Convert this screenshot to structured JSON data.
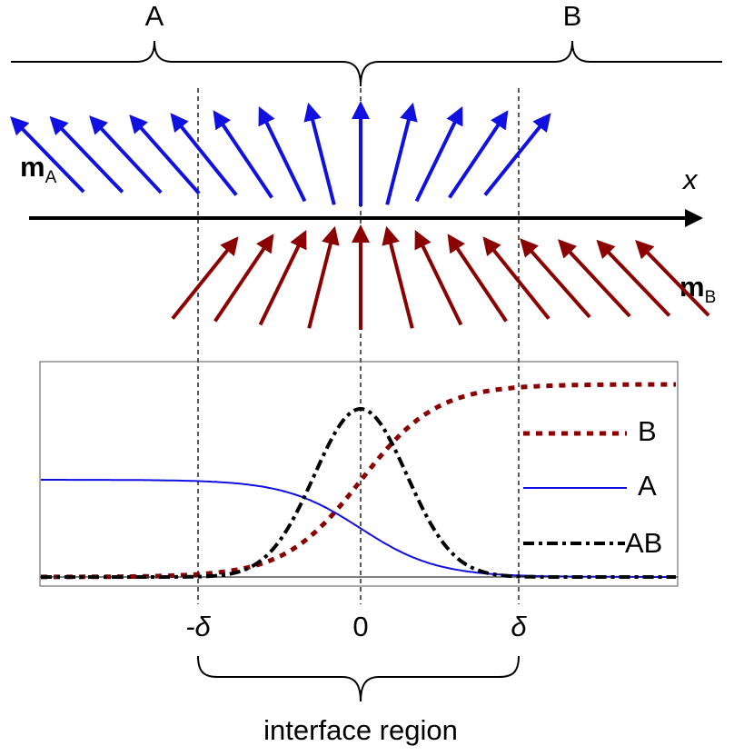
{
  "top_brace": {
    "left_label": "A",
    "right_label": "B"
  },
  "axis_label": "x",
  "moment_a": {
    "symbol": "m",
    "subscript": "A"
  },
  "moment_b": {
    "symbol": "m",
    "subscript": "B"
  },
  "legend": [
    "B",
    "A",
    "AB"
  ],
  "ticks": [
    "-δ",
    "0",
    "δ"
  ],
  "bottom_label": "interface region"
}
